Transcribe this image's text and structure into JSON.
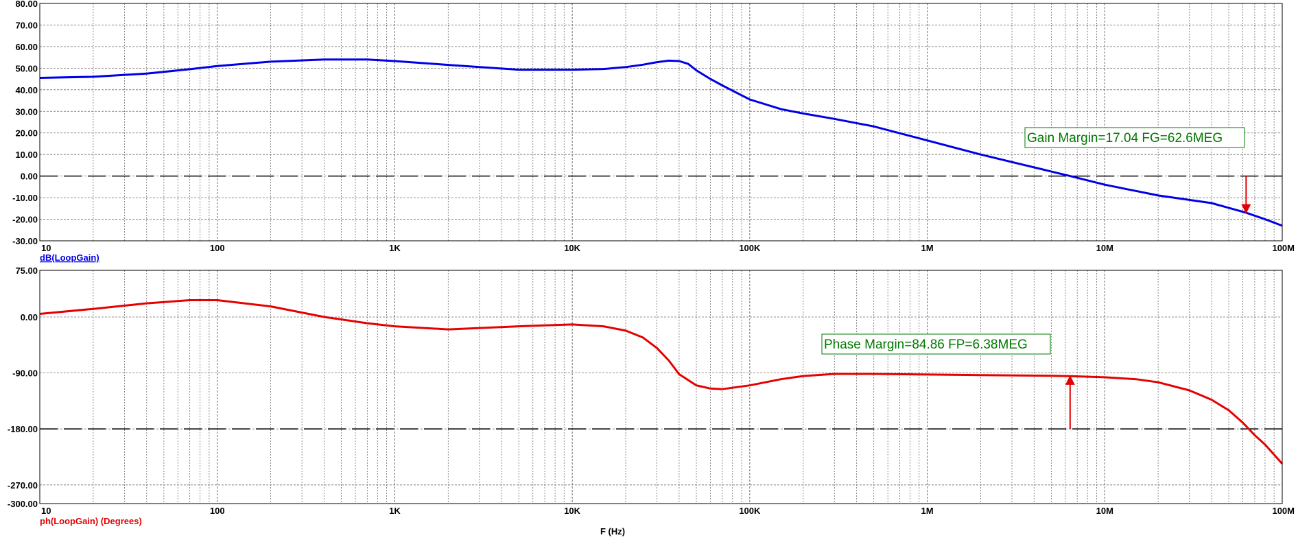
{
  "page": {
    "x_axis_title": "F (Hz)"
  },
  "chart_data": [
    {
      "type": "line",
      "id": "gain",
      "ylabel": "dB(LoopGain)",
      "x_scale": "log",
      "xlim": [
        10,
        100000000
      ],
      "x_tick_labels": [
        "10",
        "100",
        "1K",
        "10K",
        "100K",
        "1M",
        "10M",
        "100M"
      ],
      "ylim": [
        -30,
        80
      ],
      "y_ticks": [
        -30,
        -20,
        -10,
        0,
        10,
        20,
        30,
        40,
        50,
        60,
        70,
        80
      ],
      "y_tick_labels": [
        "-30.00",
        "-20.00",
        "-10.00",
        "0.00",
        "10.00",
        "20.00",
        "30.00",
        "40.00",
        "50.00",
        "60.00",
        "70.00",
        "80.00"
      ],
      "grid": true,
      "reference_line": 0,
      "series": [
        {
          "name": "dB(LoopGain)",
          "color": "#0000e6",
          "x": [
            10,
            20,
            40,
            70,
            100,
            200,
            400,
            700,
            1000,
            2000,
            5000,
            10000,
            15000,
            20000,
            25000,
            30000,
            35000,
            40000,
            45000,
            50000,
            60000,
            70000,
            100000,
            150000,
            200000,
            300000,
            500000,
            1000000,
            2000000,
            3000000,
            6380000,
            10000000,
            20000000,
            40000000,
            62600000,
            80000000,
            100000000
          ],
          "y": [
            45.5,
            46.0,
            47.5,
            49.5,
            51.0,
            53.0,
            54.0,
            54.0,
            53.3,
            51.5,
            49.3,
            49.3,
            49.6,
            50.5,
            51.6,
            52.8,
            53.5,
            53.3,
            52.0,
            49.0,
            45.0,
            42.0,
            35.5,
            31.0,
            29.0,
            26.5,
            23.0,
            16.5,
            10.0,
            6.5,
            0.0,
            -4.0,
            -9.0,
            -12.5,
            -17.0,
            -20.0,
            -23.0
          ]
        }
      ],
      "annotation": {
        "text": "Gain Margin=17.04 FG=62.6MEG",
        "arrow_x": 62600000,
        "arrow_from": 0,
        "arrow_to": -17.04,
        "color": "#007a00"
      }
    },
    {
      "type": "line",
      "id": "phase",
      "ylabel": "ph(LoopGain) (Degrees)",
      "x_scale": "log",
      "xlim": [
        10,
        100000000
      ],
      "x_tick_labels": [
        "10",
        "100",
        "1K",
        "10K",
        "100K",
        "1M",
        "10M",
        "100M"
      ],
      "ylim": [
        -300,
        75
      ],
      "y_ticks": [
        -300,
        -270,
        -180,
        -90,
        0,
        75
      ],
      "y_tick_labels": [
        "-300.00",
        "-270.00",
        "-180.00",
        "-90.00",
        "0.00",
        "75.00"
      ],
      "grid": true,
      "reference_line": -180,
      "series": [
        {
          "name": "ph(LoopGain) (Degrees)",
          "color": "#e60000",
          "x": [
            10,
            20,
            40,
            70,
            100,
            200,
            400,
            700,
            1000,
            2000,
            5000,
            10000,
            15000,
            20000,
            25000,
            30000,
            35000,
            40000,
            50000,
            60000,
            70000,
            100000,
            150000,
            200000,
            300000,
            500000,
            1000000,
            2000000,
            5000000,
            6380000,
            10000000,
            15000000,
            20000000,
            30000000,
            40000000,
            50000000,
            60000000,
            70000000,
            80000000,
            100000000
          ],
          "y": [
            5.0,
            13.0,
            22.0,
            27.0,
            27.0,
            17.0,
            0.0,
            -10.0,
            -15.0,
            -20.0,
            -15.0,
            -12.0,
            -15.0,
            -22.0,
            -33.0,
            -50.0,
            -70.0,
            -92.0,
            -110.0,
            -115.0,
            -116.0,
            -110.0,
            -100.0,
            -95.0,
            -91.5,
            -91.5,
            -92.5,
            -93.5,
            -94.5,
            -95.1,
            -97.0,
            -100.0,
            -105.0,
            -118.0,
            -133.0,
            -150.0,
            -170.0,
            -190.0,
            -205.0,
            -236.0
          ]
        }
      ],
      "annotation": {
        "text": "Phase Margin=84.86 FP=6.38MEG",
        "arrow_x": 6380000,
        "arrow_from": -180,
        "arrow_to": -95.14,
        "color": "#007a00"
      }
    }
  ]
}
